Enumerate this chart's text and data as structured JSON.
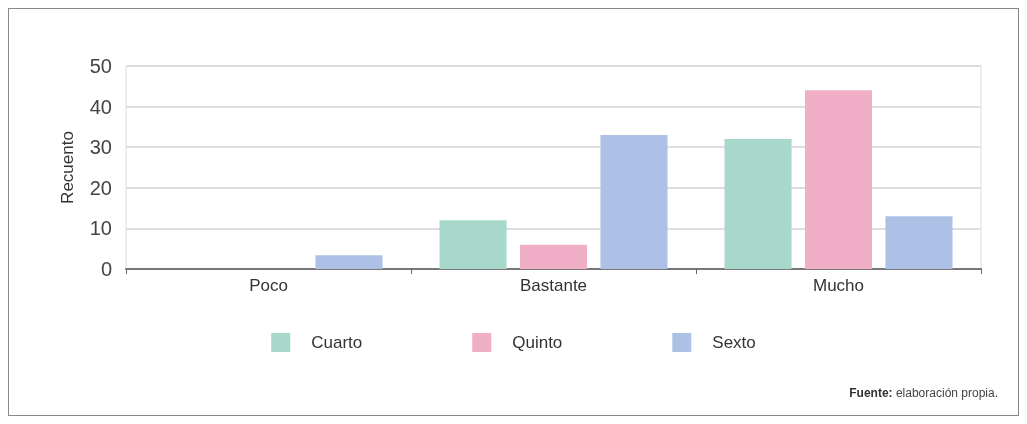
{
  "chart_data": {
    "type": "bar",
    "ylabel": "Recuento",
    "categories": [
      "Poco",
      "Bastante",
      "Mucho"
    ],
    "series": [
      {
        "name": "Cuarto",
        "color": "#a8d8cb",
        "values": [
          0,
          12,
          32
        ]
      },
      {
        "name": "Quinto",
        "color": "#f1aec7",
        "values": [
          0,
          6,
          44
        ]
      },
      {
        "name": "Sexto",
        "color": "#adc0e6",
        "values": [
          3.4,
          33,
          13
        ]
      }
    ],
    "ylim": [
      0,
      50
    ],
    "yticks": [
      0,
      10,
      20,
      30,
      40,
      50
    ],
    "grid": "y",
    "legend": "bottom",
    "annotations": [
      "Fuente: elaboración propia."
    ]
  }
}
